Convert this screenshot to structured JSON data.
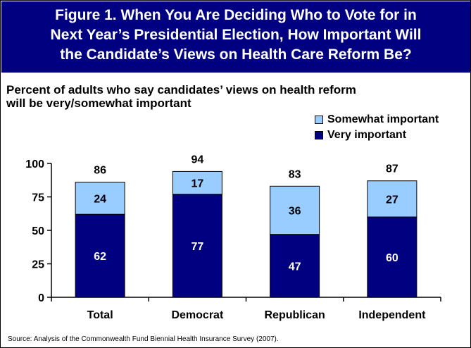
{
  "title_lines": [
    "Figure 1. When You Are Deciding Who to Vote for in",
    "Next Year’s Presidential Election, How Important Will",
    "the Candidate’s Views on Health Care Reform Be?"
  ],
  "subtitle_lines": [
    "Percent of adults who say candidates’ views on health reform",
    "will be very/somewhat important"
  ],
  "source": "Source: Analysis of the Commonwealth Fund Biennial Health Insurance Survey (2007).",
  "colors": {
    "title_background": "#000080",
    "very_important": "#000080",
    "somewhat_important": "#99CCFF"
  },
  "chart_data": {
    "type": "bar",
    "stacked": true,
    "categories": [
      "Total",
      "Democrat",
      "Republican",
      "Independent"
    ],
    "series": [
      {
        "name": "Very important",
        "values": [
          62,
          77,
          47,
          60
        ],
        "color": "#000080"
      },
      {
        "name": "Somewhat important",
        "values": [
          24,
          17,
          36,
          27
        ],
        "color": "#99CCFF"
      }
    ],
    "totals": [
      86,
      94,
      83,
      87
    ],
    "ylim": [
      0,
      100
    ],
    "yticks": [
      0,
      25,
      50,
      75,
      100
    ],
    "legend_position": "top-right",
    "grid": false
  }
}
